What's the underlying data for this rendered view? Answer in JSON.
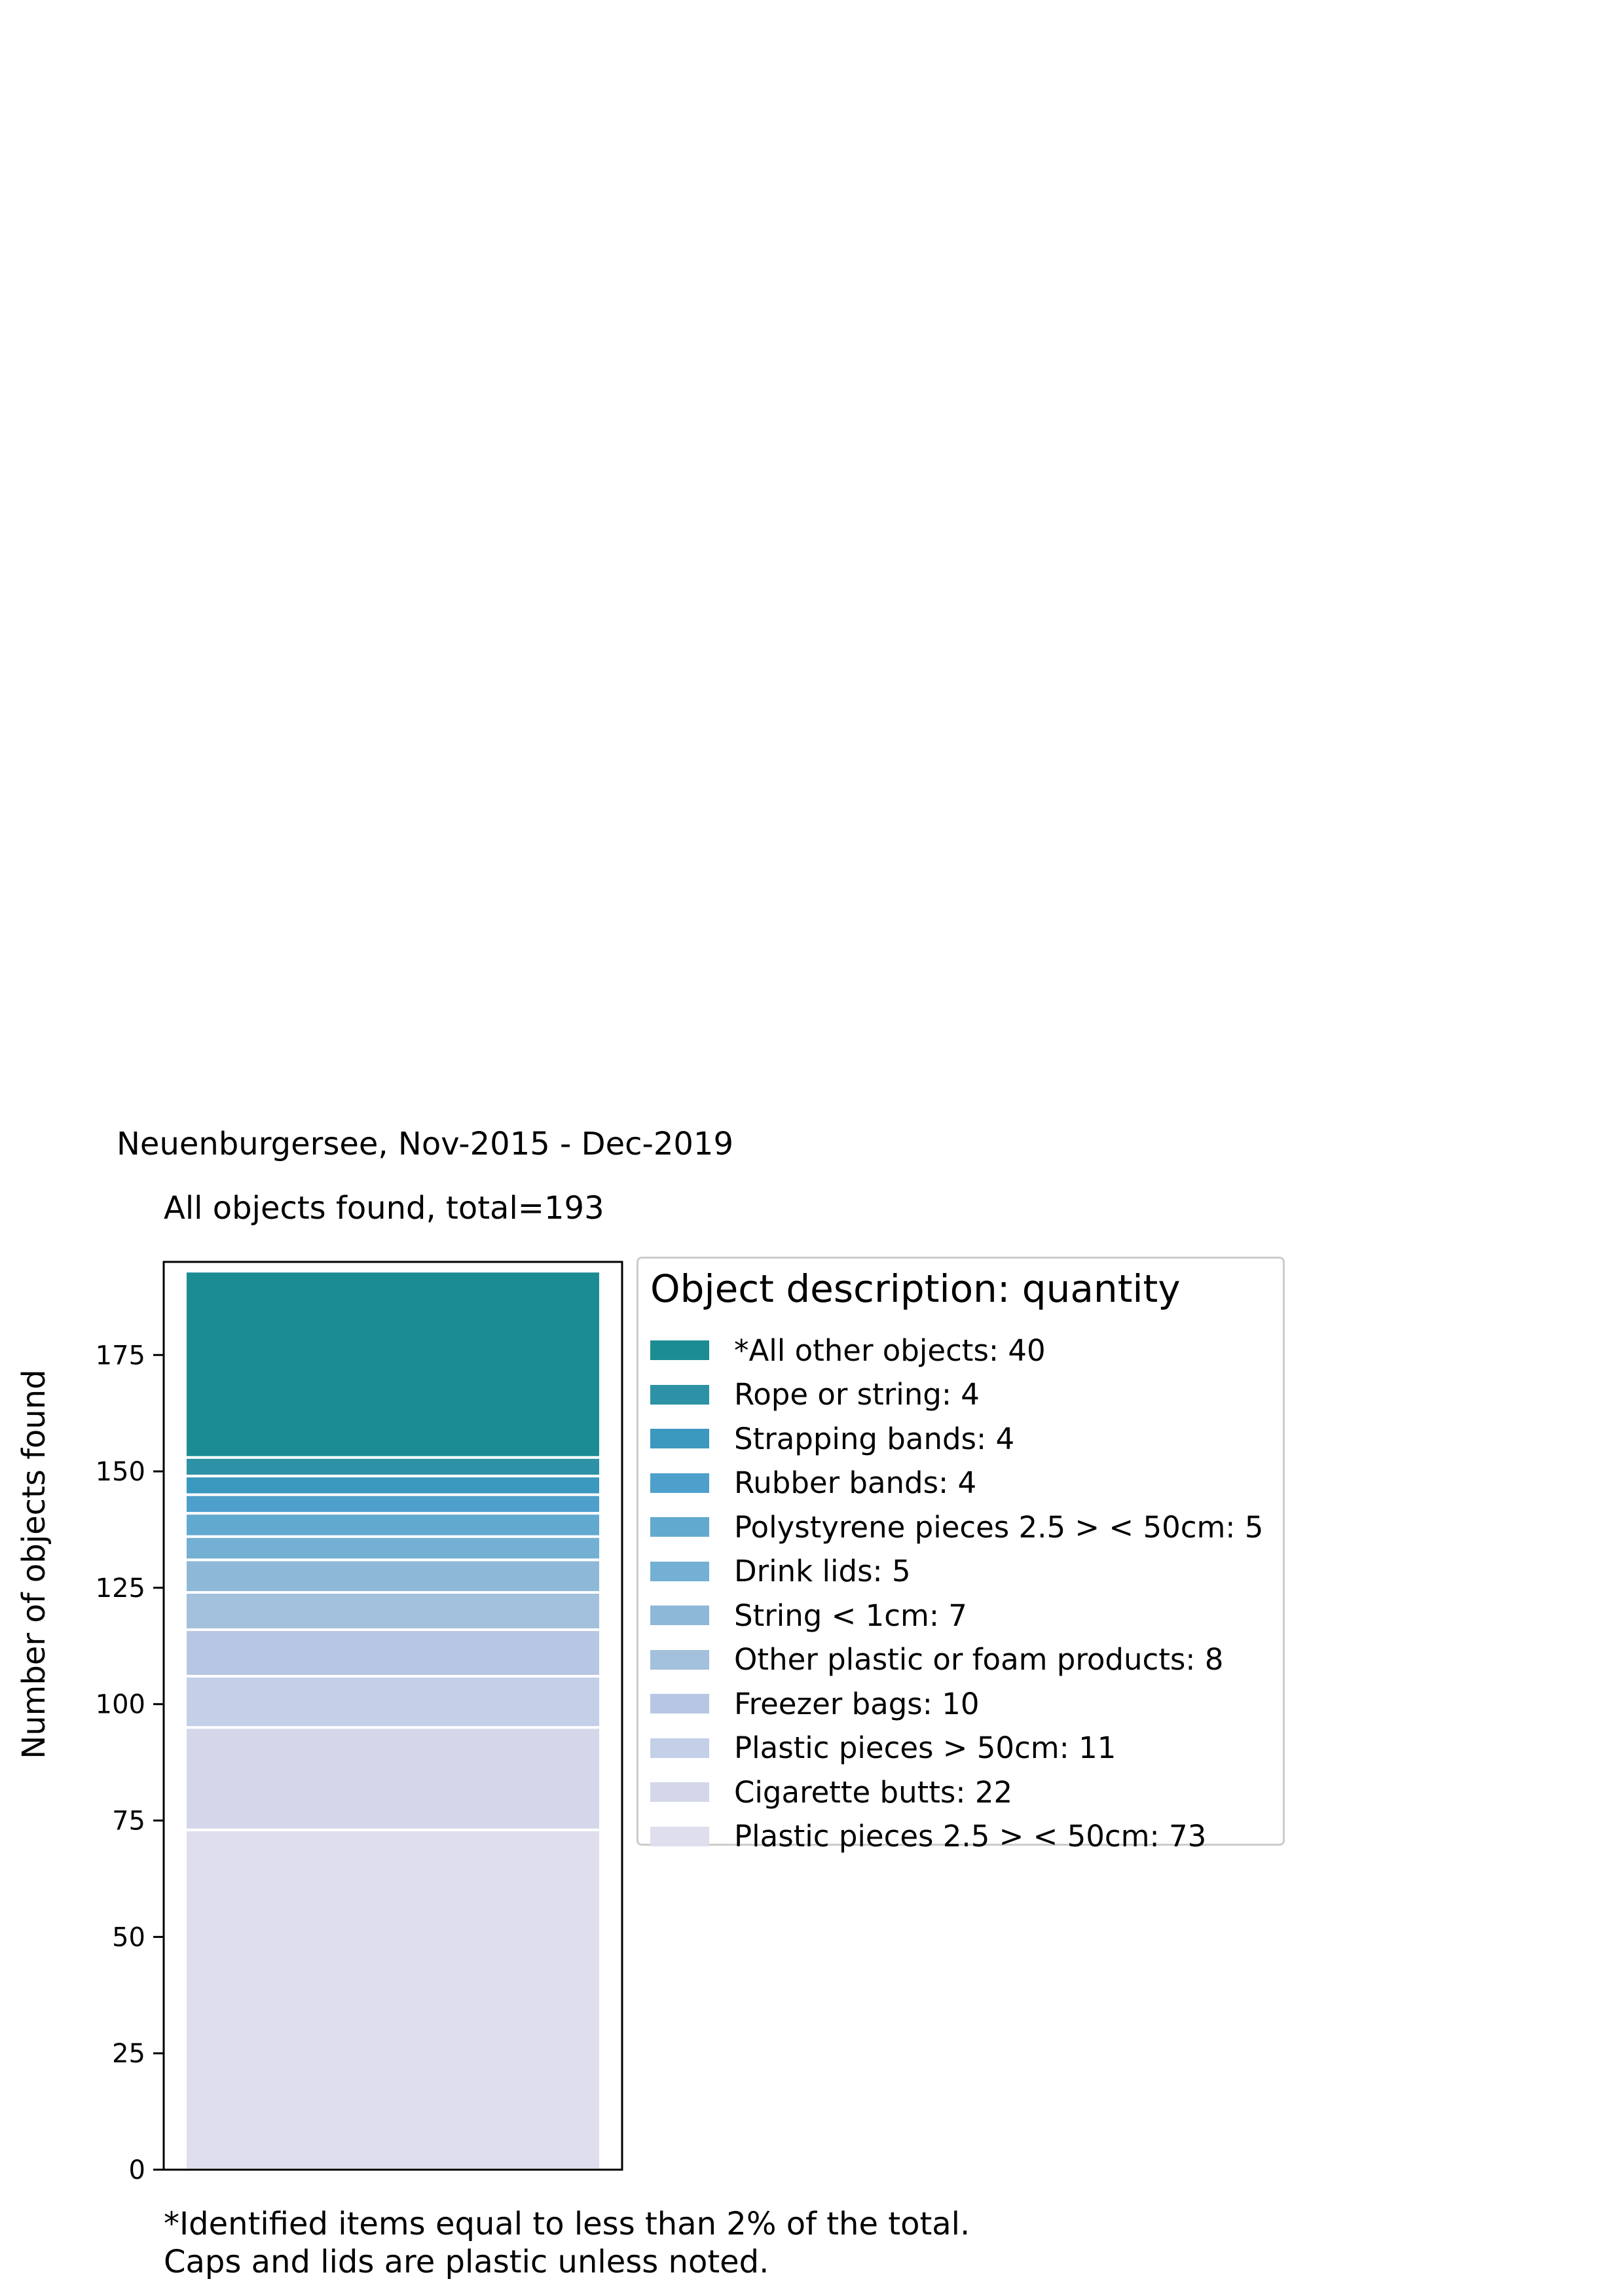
{
  "chart_data": {
    "type": "bar",
    "stacked": true,
    "suptitle": "Neuenburgersee, Nov-2015 - Dec-2019",
    "title": "All objects found,  total=193",
    "ylabel": "Number of objects found",
    "ylim": [
      0,
      195
    ],
    "yticks": [
      "0",
      "25",
      "50",
      "75",
      "100",
      "125",
      "150",
      "175"
    ],
    "legend_title": "Object description: quantity",
    "legend_position": "right",
    "series": [
      {
        "name": "Plastic pieces 2.5 > < 50cm: 73",
        "value": 73,
        "color": "#dfdeed"
      },
      {
        "name": "Cigarette butts: 22",
        "value": 22,
        "color": "#d4d7e9"
      },
      {
        "name": "Plastic pieces > 50cm: 11",
        "value": 11,
        "color": "#c4cfe8"
      },
      {
        "name": "Freezer bags: 10",
        "value": 10,
        "color": "#b7c7e3"
      },
      {
        "name": "Other plastic or foam products: 8",
        "value": 8,
        "color": "#a3c0dc"
      },
      {
        "name": "String < 1cm: 7",
        "value": 7,
        "color": "#8eb8d8"
      },
      {
        "name": "Drink lids: 5",
        "value": 5,
        "color": "#74b0d4"
      },
      {
        "name": "Polystyrene pieces 2.5 > < 50cm: 5",
        "value": 5,
        "color": "#62a9d0"
      },
      {
        "name": "Rubber bands: 4",
        "value": 4,
        "color": "#4f9fcc"
      },
      {
        "name": "Strapping bands: 4",
        "value": 4,
        "color": "#3b98bf"
      },
      {
        "name": "Rope or string: 4",
        "value": 4,
        "color": "#2d92a5"
      },
      {
        "name": "*All other objects: 40",
        "value": 40,
        "color": "#1c8c93"
      }
    ]
  },
  "footnotes": [
    "*Identified items equal to less than 2% of the total.",
    "Caps and lids are plastic unless noted."
  ]
}
